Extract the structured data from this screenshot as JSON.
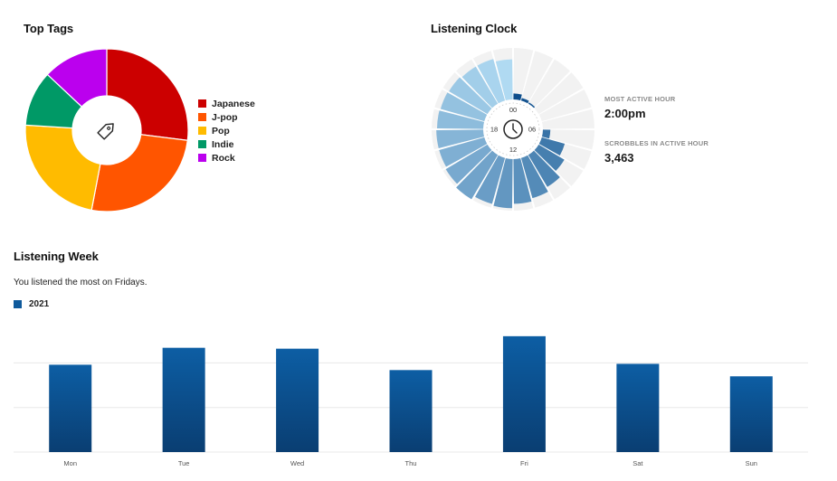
{
  "top_tags": {
    "title": "Top Tags",
    "center_icon": "tag-icon",
    "chart_data": {
      "type": "pie",
      "categories": [
        "Japanese",
        "J-pop",
        "Pop",
        "Indie",
        "Rock"
      ],
      "values": [
        27,
        26,
        23,
        11,
        13
      ],
      "colors": [
        "#cc0000",
        "#ff5500",
        "#ffbb00",
        "#009966",
        "#bb00ee"
      ],
      "legend_position": "right"
    }
  },
  "listening_clock": {
    "title": "Listening Clock",
    "center_icon": "clock-icon",
    "hour_labels": [
      "00",
      "06",
      "12",
      "18"
    ],
    "most_active_hour_label": "MOST ACTIVE HOUR",
    "most_active_hour_value": "2:00pm",
    "scrobbles_label": "SCROBBLES IN ACTIVE HOUR",
    "scrobbles_value": "3,463",
    "chart_data": {
      "type": "bar",
      "polar": true,
      "x": [
        0,
        1,
        2,
        3,
        4,
        5,
        6,
        7,
        8,
        9,
        10,
        11,
        12,
        13,
        14,
        15,
        16,
        17,
        18,
        19,
        20,
        21,
        22,
        23
      ],
      "values": [
        400,
        180,
        100,
        0,
        0,
        0,
        500,
        1600,
        2000,
        2500,
        2800,
        3000,
        3300,
        3200,
        3463,
        3250,
        3150,
        3150,
        3100,
        3050,
        3000,
        2900,
        2900,
        2700
      ],
      "ylim": [
        0,
        3463
      ]
    }
  },
  "listening_week": {
    "title": "Listening Week",
    "subtitle": "You listened the most on Fridays.",
    "legend_label": "2021",
    "chart_data": {
      "type": "bar",
      "categories": [
        "Mon",
        "Tue",
        "Wed",
        "Thu",
        "Fri",
        "Sat",
        "Sun"
      ],
      "series": [
        {
          "name": "2021",
          "values": [
            98,
            117,
            116,
            92,
            130,
            99,
            85
          ]
        }
      ],
      "ylim": [
        0,
        140
      ],
      "color": "#0f5a9c"
    }
  }
}
